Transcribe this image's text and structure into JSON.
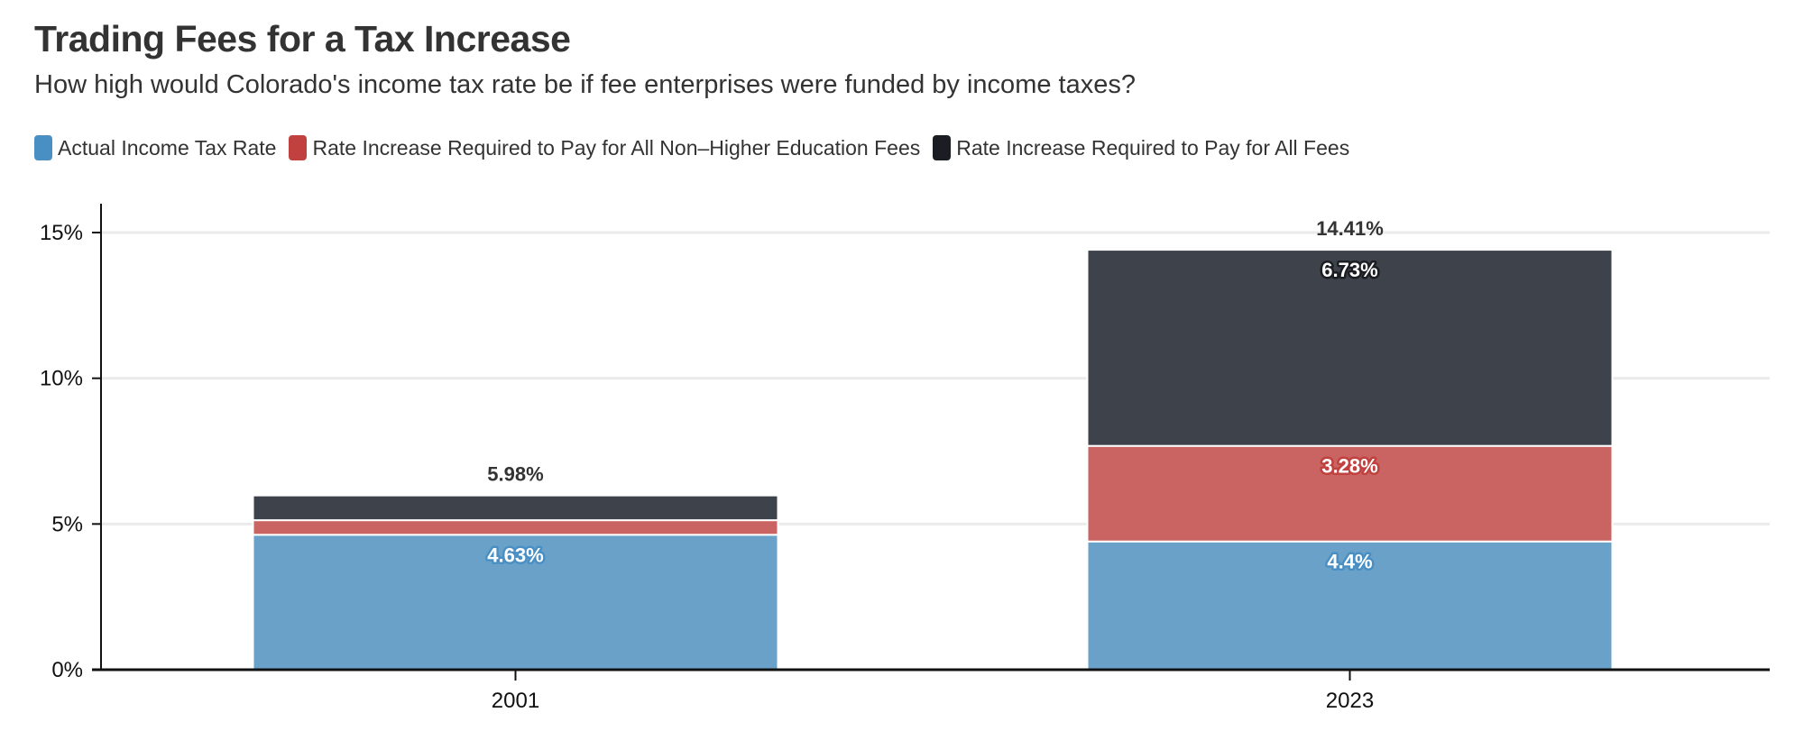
{
  "title": "Trading Fees for a Tax Increase",
  "subtitle": "How high would Colorado's income tax rate be if fee enterprises were funded by income taxes?",
  "chart_data": {
    "type": "bar",
    "stacked": true,
    "categories": [
      "2001",
      "2023"
    ],
    "series": [
      {
        "name": "Actual Income Tax Rate",
        "values": [
          4.63,
          4.4
        ],
        "labels": [
          "4.63%",
          "4.4%"
        ],
        "color": "#6aa1c8",
        "legend_color": "#4a8fc4"
      },
      {
        "name": "Rate Increase Required to Pay for All Non–Higher Education Fees",
        "values": [
          0.5,
          3.28
        ],
        "labels": [
          "",
          "3.28%"
        ],
        "color": "#c96462",
        "legend_color": "#c0413e"
      },
      {
        "name": "Rate Increase Required to Pay for All Fees",
        "values": [
          0.85,
          6.73
        ],
        "labels": [
          "",
          "6.73%"
        ],
        "color": "#3e424a",
        "legend_color": "#1a1d22"
      }
    ],
    "totals": [
      "5.98%",
      "14.41%"
    ],
    "yticks": [
      "0%",
      "5%",
      "10%",
      "15%"
    ],
    "ytick_values": [
      0,
      5,
      10,
      15
    ],
    "ylim": [
      0,
      15.9
    ],
    "grid": true,
    "legend": "top-left",
    "xlabel": "",
    "ylabel": ""
  }
}
